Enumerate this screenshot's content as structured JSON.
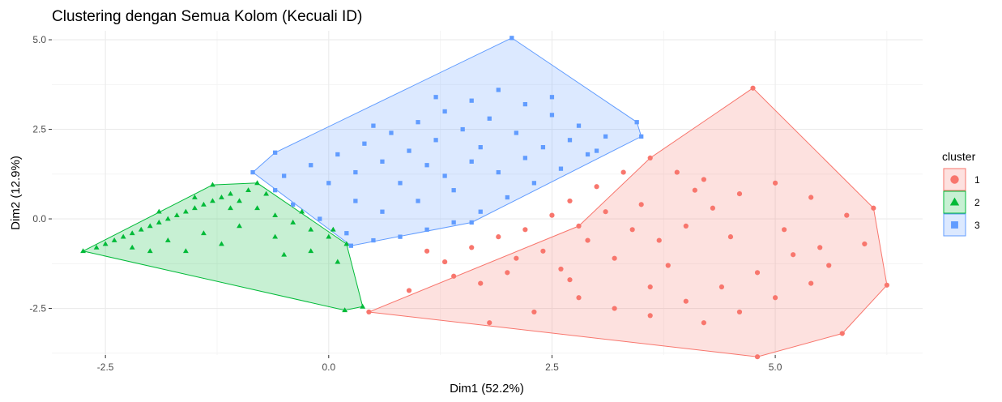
{
  "chart_data": {
    "type": "scatter",
    "title": "Clustering dengan Semua Kolom (Kecuali ID)",
    "xlabel": "Dim1 (52.2%)",
    "ylabel": "Dim2 (12.9%)",
    "xlim": [
      -3.1,
      6.65
    ],
    "ylim": [
      -3.8,
      5.25
    ],
    "x_ticks": [
      -2.5,
      0.0,
      2.5,
      5.0
    ],
    "x_tick_labels": [
      "-2.5",
      "0.0",
      "2.5",
      "5.0"
    ],
    "y_ticks": [
      -2.5,
      0.0,
      2.5,
      5.0
    ],
    "y_tick_labels": [
      "-2.5",
      "0.0",
      "2.5",
      "5.0"
    ],
    "grid": true,
    "legend": {
      "title": "cluster",
      "position": "right"
    },
    "series": [
      {
        "name": "1",
        "marker": "circle",
        "color": "#F8766D",
        "hull": [
          [
            0.45,
            -2.6
          ],
          [
            2.8,
            -0.2
          ],
          [
            3.6,
            1.7
          ],
          [
            4.75,
            3.65
          ],
          [
            6.1,
            0.3
          ],
          [
            6.25,
            -1.85
          ],
          [
            5.75,
            -3.2
          ],
          [
            4.8,
            -3.85
          ]
        ],
        "points": [
          [
            4.75,
            3.65
          ],
          [
            6.1,
            0.3
          ],
          [
            6.25,
            -1.85
          ],
          [
            5.75,
            -3.2
          ],
          [
            4.8,
            -3.85
          ],
          [
            0.45,
            -2.6
          ],
          [
            3.6,
            1.7
          ],
          [
            2.8,
            -0.2
          ],
          [
            1.3,
            -1.2
          ],
          [
            1.6,
            -0.8
          ],
          [
            1.9,
            -0.5
          ],
          [
            2.2,
            -0.3
          ],
          [
            2.5,
            0.1
          ],
          [
            2.7,
            0.5
          ],
          [
            3.0,
            0.9
          ],
          [
            3.3,
            1.3
          ],
          [
            3.1,
            0.2
          ],
          [
            2.4,
            -0.9
          ],
          [
            2.0,
            -1.5
          ],
          [
            1.7,
            -1.8
          ],
          [
            2.6,
            -1.4
          ],
          [
            3.2,
            -1.1
          ],
          [
            3.7,
            -0.6
          ],
          [
            4.0,
            -0.2
          ],
          [
            4.3,
            0.3
          ],
          [
            4.6,
            0.7
          ],
          [
            5.0,
            1.0
          ],
          [
            5.4,
            0.6
          ],
          [
            5.8,
            0.1
          ],
          [
            6.0,
            -0.7
          ],
          [
            5.6,
            -1.3
          ],
          [
            5.2,
            -1.0
          ],
          [
            4.8,
            -1.5
          ],
          [
            4.4,
            -1.9
          ],
          [
            4.0,
            -2.3
          ],
          [
            3.6,
            -2.7
          ],
          [
            3.2,
            -2.5
          ],
          [
            2.8,
            -2.2
          ],
          [
            2.3,
            -2.6
          ],
          [
            1.8,
            -2.9
          ],
          [
            4.2,
            -2.9
          ],
          [
            4.6,
            -2.6
          ],
          [
            5.0,
            -2.2
          ],
          [
            5.4,
            -1.8
          ],
          [
            3.9,
            1.3
          ],
          [
            4.2,
            1.1
          ],
          [
            3.5,
            0.4
          ],
          [
            3.4,
            -0.3
          ],
          [
            2.9,
            -0.6
          ],
          [
            3.8,
            -1.3
          ],
          [
            4.5,
            -0.5
          ],
          [
            5.1,
            -0.3
          ],
          [
            5.5,
            -0.8
          ],
          [
            4.1,
            0.8
          ],
          [
            3.6,
            -1.9
          ],
          [
            2.1,
            -1.1
          ],
          [
            1.4,
            -1.6
          ],
          [
            0.9,
            -2.0
          ],
          [
            1.1,
            -0.9
          ],
          [
            2.7,
            -1.7
          ]
        ]
      },
      {
        "name": "2",
        "marker": "triangle",
        "color": "#00BA38",
        "hull": [
          [
            -2.75,
            -0.9
          ],
          [
            -1.3,
            0.95
          ],
          [
            -0.8,
            1.0
          ],
          [
            0.2,
            -0.7
          ],
          [
            0.38,
            -2.45
          ],
          [
            0.18,
            -2.55
          ]
        ],
        "points": [
          [
            -2.75,
            -0.9
          ],
          [
            -1.3,
            0.95
          ],
          [
            -0.8,
            1.0
          ],
          [
            0.2,
            -0.7
          ],
          [
            0.38,
            -2.45
          ],
          [
            0.18,
            -2.55
          ],
          [
            -2.5,
            -0.7
          ],
          [
            -2.3,
            -0.5
          ],
          [
            -2.1,
            -0.3
          ],
          [
            -1.9,
            -0.1
          ],
          [
            -1.7,
            0.1
          ],
          [
            -1.5,
            0.3
          ],
          [
            -1.3,
            0.5
          ],
          [
            -1.1,
            0.7
          ],
          [
            -0.9,
            0.8
          ],
          [
            -2.4,
            -0.6
          ],
          [
            -2.2,
            -0.4
          ],
          [
            -2.0,
            -0.2
          ],
          [
            -1.8,
            0.0
          ],
          [
            -1.6,
            0.2
          ],
          [
            -1.4,
            0.4
          ],
          [
            -1.2,
            0.6
          ],
          [
            -1.0,
            0.5
          ],
          [
            -0.8,
            0.3
          ],
          [
            -0.6,
            0.1
          ],
          [
            -0.4,
            -0.1
          ],
          [
            -0.2,
            -0.3
          ],
          [
            0.0,
            -0.5
          ],
          [
            -2.2,
            -0.8
          ],
          [
            -1.8,
            -0.6
          ],
          [
            -1.4,
            -0.4
          ],
          [
            -1.0,
            -0.2
          ],
          [
            -0.6,
            -0.5
          ],
          [
            -0.2,
            -0.9
          ],
          [
            0.1,
            -1.2
          ],
          [
            -0.5,
            -1.0
          ],
          [
            -1.2,
            -0.7
          ],
          [
            -1.6,
            -0.9
          ],
          [
            -2.0,
            -0.9
          ],
          [
            -1.9,
            0.2
          ],
          [
            -1.5,
            0.6
          ],
          [
            -1.1,
            0.3
          ],
          [
            -0.7,
            0.7
          ],
          [
            -0.3,
            0.2
          ],
          [
            0.05,
            -0.3
          ],
          [
            -2.6,
            -0.8
          ]
        ]
      },
      {
        "name": "3",
        "marker": "square",
        "color": "#619CFF",
        "hull": [
          [
            -0.85,
            1.3
          ],
          [
            -0.6,
            1.85
          ],
          [
            2.05,
            5.05
          ],
          [
            3.45,
            2.7
          ],
          [
            3.5,
            2.3
          ],
          [
            1.6,
            -0.1
          ],
          [
            0.25,
            -0.75
          ]
        ],
        "points": [
          [
            -0.85,
            1.3
          ],
          [
            -0.6,
            1.85
          ],
          [
            2.05,
            5.05
          ],
          [
            3.45,
            2.7
          ],
          [
            3.5,
            2.3
          ],
          [
            1.6,
            -0.1
          ],
          [
            0.25,
            -0.75
          ],
          [
            -0.5,
            1.2
          ],
          [
            -0.2,
            1.5
          ],
          [
            0.1,
            1.8
          ],
          [
            0.4,
            2.1
          ],
          [
            0.7,
            2.4
          ],
          [
            1.0,
            2.7
          ],
          [
            1.3,
            3.0
          ],
          [
            1.6,
            3.3
          ],
          [
            1.9,
            3.6
          ],
          [
            2.2,
            3.2
          ],
          [
            2.5,
            2.9
          ],
          [
            2.8,
            2.6
          ],
          [
            3.1,
            2.3
          ],
          [
            2.9,
            1.8
          ],
          [
            2.6,
            1.4
          ],
          [
            2.3,
            1.0
          ],
          [
            2.0,
            0.6
          ],
          [
            1.7,
            0.2
          ],
          [
            1.4,
            -0.1
          ],
          [
            1.1,
            -0.3
          ],
          [
            0.8,
            -0.5
          ],
          [
            0.5,
            -0.6
          ],
          [
            0.2,
            -0.4
          ],
          [
            -0.1,
            0.0
          ],
          [
            -0.4,
            0.4
          ],
          [
            -0.6,
            0.8
          ],
          [
            0.0,
            1.0
          ],
          [
            0.3,
            1.3
          ],
          [
            0.6,
            1.6
          ],
          [
            0.9,
            1.9
          ],
          [
            1.2,
            2.2
          ],
          [
            1.5,
            2.5
          ],
          [
            1.8,
            2.8
          ],
          [
            2.1,
            2.4
          ],
          [
            2.4,
            2.0
          ],
          [
            2.7,
            2.2
          ],
          [
            3.0,
            1.9
          ],
          [
            1.0,
            0.5
          ],
          [
            0.6,
            0.2
          ],
          [
            1.3,
            1.2
          ],
          [
            1.6,
            1.6
          ],
          [
            1.9,
            1.3
          ],
          [
            2.2,
            1.7
          ],
          [
            0.8,
            1.0
          ],
          [
            1.1,
            1.5
          ],
          [
            1.4,
            0.8
          ],
          [
            0.3,
            0.5
          ],
          [
            1.7,
            2.0
          ],
          [
            2.5,
            3.4
          ],
          [
            1.2,
            3.4
          ],
          [
            0.5,
            2.6
          ]
        ]
      }
    ]
  }
}
